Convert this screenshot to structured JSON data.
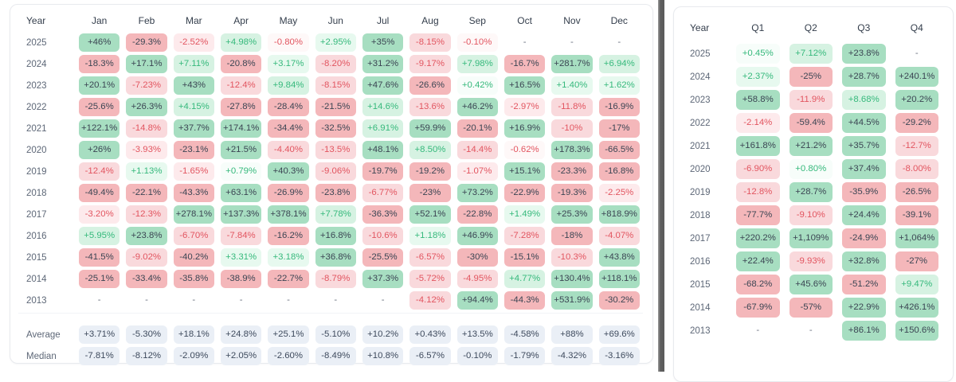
{
  "colors": {
    "green_strong_bg": "#a7dec1",
    "green_pale_bg": "#d6f2e2",
    "green_faint_bg": "#e7f9ef",
    "green_wash_bg": "#f7fdfa",
    "red_strong_bg": "#f4b7ba",
    "red_pale_bg": "#f9d9dc",
    "red_faint_bg": "#fdeaec",
    "red_wash_bg": "#fef8f8",
    "text_dark": "#3b4553",
    "text_green": "#36b97c",
    "text_red": "#e25560",
    "text_dash": "#6b7280",
    "text_year": "#5d6777",
    "text_header": "#333d4b",
    "stat_bg": "#eaeff6",
    "stat_text": "#3e4a5d"
  },
  "chart_data": [
    {
      "type": "heatmap",
      "columns": [
        "Year",
        "Jan",
        "Feb",
        "Mar",
        "Apr",
        "May",
        "Jun",
        "Jul",
        "Aug",
        "Sep",
        "Oct",
        "Nov",
        "Dec"
      ],
      "rows": [
        {
          "year": "2025",
          "values": [
            "+46%",
            "-29.3%",
            "-2.52%",
            "+4.98%",
            "-0.80%",
            "+2.95%",
            "+35%",
            "-8.15%",
            "-0.10%",
            "-",
            "-",
            "-"
          ]
        },
        {
          "year": "2024",
          "values": [
            "-18.3%",
            "+17.1%",
            "+7.11%",
            "-20.8%",
            "+3.17%",
            "-8.20%",
            "+31.2%",
            "-9.17%",
            "+7.98%",
            "-16.7%",
            "+281.7%",
            "+6.94%"
          ]
        },
        {
          "year": "2023",
          "values": [
            "+20.1%",
            "-7.23%",
            "+43%",
            "-12.4%",
            "+9.84%",
            "-8.15%",
            "+47.6%",
            "-26.6%",
            "+0.42%",
            "+16.5%",
            "+1.40%",
            "+1.62%"
          ]
        },
        {
          "year": "2022",
          "values": [
            "-25.6%",
            "+26.3%",
            "+4.15%",
            "-27.8%",
            "-28.4%",
            "-21.5%",
            "+14.6%",
            "-13.6%",
            "+46.2%",
            "-2.97%",
            "-11.8%",
            "-16.9%"
          ]
        },
        {
          "year": "2021",
          "values": [
            "+122.1%",
            "-14.8%",
            "+37.7%",
            "+174.1%",
            "-34.4%",
            "-32.5%",
            "+6.91%",
            "+59.9%",
            "-20.1%",
            "+16.9%",
            "-10%",
            "-17%"
          ]
        },
        {
          "year": "2020",
          "values": [
            "+26%",
            "-3.93%",
            "-23.1%",
            "+21.5%",
            "-4.40%",
            "-13.5%",
            "+48.1%",
            "+8.50%",
            "-14.4%",
            "-0.62%",
            "+178.3%",
            "-66.5%"
          ]
        },
        {
          "year": "2019",
          "values": [
            "-12.4%",
            "+1.13%",
            "-1.65%",
            "+0.79%",
            "+40.3%",
            "-9.06%",
            "-19.7%",
            "-19.2%",
            "-1.07%",
            "+15.1%",
            "-23.3%",
            "-16.8%"
          ]
        },
        {
          "year": "2018",
          "values": [
            "-49.4%",
            "-22.1%",
            "-43.3%",
            "+63.1%",
            "-26.9%",
            "-23.8%",
            "-6.77%",
            "-23%",
            "+73.2%",
            "-22.9%",
            "-19.3%",
            "-2.25%"
          ]
        },
        {
          "year": "2017",
          "values": [
            "-3.20%",
            "-12.3%",
            "+278.1%",
            "+137.3%",
            "+378.1%",
            "+7.78%",
            "-36.3%",
            "+52.1%",
            "-22.8%",
            "+1.49%",
            "+25.3%",
            "+818.9%"
          ]
        },
        {
          "year": "2016",
          "values": [
            "+5.95%",
            "+23.8%",
            "-6.70%",
            "-7.84%",
            "-16.2%",
            "+16.8%",
            "-10.6%",
            "+1.18%",
            "+46.9%",
            "-7.28%",
            "-18%",
            "-4.07%"
          ]
        },
        {
          "year": "2015",
          "values": [
            "-41.5%",
            "-9.02%",
            "-40.2%",
            "+3.31%",
            "+3.18%",
            "+36.8%",
            "-25.5%",
            "-6.57%",
            "-30%",
            "-15.1%",
            "-10.3%",
            "+43.8%"
          ]
        },
        {
          "year": "2014",
          "values": [
            "-25.1%",
            "-33.4%",
            "-35.8%",
            "-38.9%",
            "-22.7%",
            "-8.79%",
            "+37.3%",
            "-5.72%",
            "-4.95%",
            "+4.77%",
            "+130.4%",
            "+118.1%"
          ]
        },
        {
          "year": "2013",
          "values": [
            "-",
            "-",
            "-",
            "-",
            "-",
            "-",
            "-",
            "-4.12%",
            "+94.4%",
            "-44.3%",
            "+531.9%",
            "-30.2%"
          ]
        }
      ],
      "stats": [
        {
          "label": "Average",
          "values": [
            "+3.71%",
            "-5.30%",
            "+18.1%",
            "+24.8%",
            "+25.1%",
            "-5.10%",
            "+10.2%",
            "+0.43%",
            "+13.5%",
            "-4.58%",
            "+88%",
            "+69.6%"
          ]
        },
        {
          "label": "Median",
          "values": [
            "-7.81%",
            "-8.12%",
            "-2.09%",
            "+2.05%",
            "-2.60%",
            "-8.49%",
            "+10.8%",
            "-6.57%",
            "-0.10%",
            "-1.79%",
            "-4.32%",
            "-3.16%"
          ]
        }
      ]
    },
    {
      "type": "heatmap",
      "columns": [
        "Year",
        "Q1",
        "Q2",
        "Q3",
        "Q4"
      ],
      "rows": [
        {
          "year": "2025",
          "values": [
            "+0.45%",
            "+7.12%",
            "+23.8%",
            "-"
          ]
        },
        {
          "year": "2024",
          "values": [
            "+2.37%",
            "-25%",
            "+28.7%",
            "+240.1%"
          ]
        },
        {
          "year": "2023",
          "values": [
            "+58.8%",
            "-11.9%",
            "+8.68%",
            "+20.2%"
          ]
        },
        {
          "year": "2022",
          "values": [
            "-2.14%",
            "-59.4%",
            "+44.5%",
            "-29.2%"
          ]
        },
        {
          "year": "2021",
          "values": [
            "+161.8%",
            "+21.2%",
            "+35.7%",
            "-12.7%"
          ]
        },
        {
          "year": "2020",
          "values": [
            "-6.90%",
            "+0.80%",
            "+37.4%",
            "-8.00%"
          ]
        },
        {
          "year": "2019",
          "values": [
            "-12.8%",
            "+28.7%",
            "-35.9%",
            "-26.5%"
          ]
        },
        {
          "year": "2018",
          "values": [
            "-77.7%",
            "-9.10%",
            "+24.4%",
            "-39.1%"
          ]
        },
        {
          "year": "2017",
          "values": [
            "+220.2%",
            "+1,109%",
            "-24.9%",
            "+1,064%"
          ]
        },
        {
          "year": "2016",
          "values": [
            "+22.4%",
            "-9.93%",
            "+32.8%",
            "-27%"
          ]
        },
        {
          "year": "2015",
          "values": [
            "-68.2%",
            "+45.6%",
            "-51.2%",
            "+9.47%"
          ]
        },
        {
          "year": "2014",
          "values": [
            "-67.9%",
            "-57%",
            "+22.9%",
            "+426.1%"
          ]
        },
        {
          "year": "2013",
          "values": [
            "-",
            "-",
            "+86.1%",
            "+150.6%"
          ]
        }
      ]
    }
  ]
}
